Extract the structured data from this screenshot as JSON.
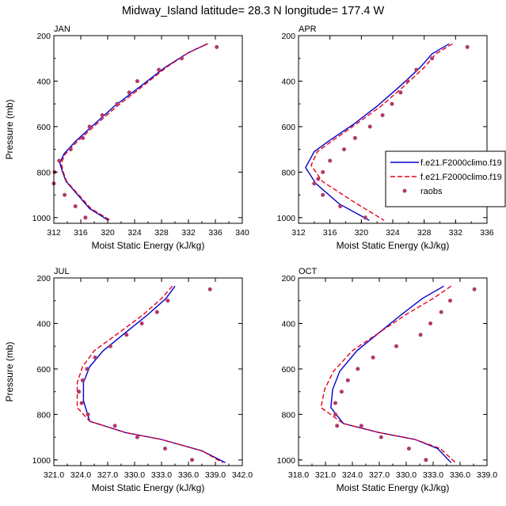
{
  "suptitle": "Midway_Island  latitude= 28.3 N longitude= 177.4 W",
  "colors": {
    "model1": "#0000cc",
    "model2": "#e8001a",
    "raobs": "#b03a6a"
  },
  "legend": {
    "entries": [
      {
        "label": "f.e21.F2000climo.f19",
        "style": "solid"
      },
      {
        "label": "f.e21.F2000climo.f19",
        "style": "dashed"
      },
      {
        "label": "raobs",
        "style": "marker"
      }
    ]
  },
  "chart_data": [
    {
      "type": "line",
      "title": "JAN",
      "xlabel": "Moist Static Energy (kJ/kg)",
      "ylabel": "Pressure (mb)",
      "xlim": [
        312,
        340
      ],
      "ylim": [
        200,
        1025
      ],
      "xticks": [
        312,
        316,
        320,
        324,
        328,
        332,
        336,
        340
      ],
      "xticklabels": [
        "312",
        "316",
        "320",
        "324",
        "328",
        "332",
        "336",
        "340"
      ],
      "yticks": [
        200,
        400,
        600,
        800,
        1000
      ],
      "yticklabels": [
        "200",
        "400",
        "600",
        "800",
        "1000"
      ],
      "series": [
        {
          "name": "f.e21.F2000climo.f19",
          "style": "solid",
          "x": [
            334.8,
            332.0,
            328.5,
            325.0,
            321.0,
            318.0,
            315.2,
            313.5,
            312.9,
            313.3,
            313.8,
            317.3,
            320.1
          ],
          "y": [
            236,
            275,
            340,
            420,
            510,
            590,
            665,
            720,
            760,
            800,
            840,
            960,
            1012
          ]
        },
        {
          "name": "f.e21.F2000climo.f19",
          "style": "dashed",
          "x": [
            334.9,
            332.0,
            328.7,
            325.3,
            321.4,
            318.3,
            315.5,
            313.7,
            313.1,
            313.4,
            313.9,
            317.5,
            320.4
          ],
          "y": [
            236,
            275,
            340,
            420,
            510,
            590,
            665,
            720,
            760,
            800,
            840,
            960,
            1012
          ]
        },
        {
          "name": "raobs",
          "style": "marker",
          "x": [
            336.2,
            331.0,
            327.6,
            324.4,
            323.2,
            321.4,
            319.2,
            317.3,
            316.3,
            314.5,
            312.8,
            312.1,
            312.0,
            313.6,
            315.2,
            316.7
          ],
          "y": [
            250,
            300,
            350,
            400,
            450,
            500,
            550,
            600,
            650,
            700,
            750,
            800,
            850,
            900,
            950,
            1000
          ]
        }
      ]
    },
    {
      "type": "line",
      "title": "APR",
      "xlabel": "Moist Static Energy (kJ/kg)",
      "ylabel": "",
      "xlim": [
        312,
        336
      ],
      "ylim": [
        200,
        1025
      ],
      "xticks": [
        312,
        316,
        320,
        324,
        328,
        332,
        336
      ],
      "xticklabels": [
        "312",
        "316",
        "320",
        "324",
        "328",
        "332",
        "336"
      ],
      "yticks": [
        200,
        400,
        600,
        800,
        1000
      ],
      "yticklabels": [
        "200",
        "400",
        "600",
        "800",
        "1000"
      ],
      "series": [
        {
          "name": "f.e21.F2000climo.f19",
          "style": "solid",
          "x": [
            331.2,
            329.0,
            327.5,
            325.0,
            322.0,
            319.0,
            316.0,
            314.0,
            312.9,
            314.2,
            317.2,
            321.0
          ],
          "y": [
            236,
            280,
            340,
            420,
            510,
            590,
            660,
            710,
            780,
            850,
            940,
            1012
          ]
        },
        {
          "name": "f.e21.F2000climo.f19",
          "style": "dashed",
          "x": [
            331.6,
            329.5,
            328.0,
            325.5,
            322.5,
            319.3,
            316.4,
            314.4,
            313.6,
            315.0,
            319.0,
            322.9
          ],
          "y": [
            236,
            280,
            340,
            420,
            510,
            590,
            660,
            710,
            770,
            840,
            930,
            1012
          ]
        },
        {
          "name": "raobs",
          "style": "marker",
          "x": [
            333.5,
            329.0,
            327.0,
            325.9,
            325.0,
            323.9,
            322.7,
            321.1,
            319.2,
            317.8,
            316.0,
            315.1,
            314.5,
            314.0,
            315.1,
            317.3,
            320.5
          ],
          "y": [
            250,
            300,
            350,
            400,
            450,
            500,
            550,
            600,
            650,
            700,
            750,
            800,
            830,
            850,
            900,
            950,
            1000
          ]
        }
      ]
    },
    {
      "type": "line",
      "title": "JUL",
      "xlabel": "Moist Static Energy (kJ/kg)",
      "ylabel": "Pressure (mb)",
      "xlim": [
        321,
        342
      ],
      "ylim": [
        200,
        1025
      ],
      "xticks": [
        321,
        324,
        327,
        330,
        333,
        336,
        339,
        342
      ],
      "xticklabels": [
        "321.0",
        "324.0",
        "327.0",
        "330.0",
        "333.0",
        "336.0",
        "339.0",
        "342.0"
      ],
      "yticks": [
        200,
        400,
        600,
        800,
        1000
      ],
      "yticklabels": [
        "200",
        "400",
        "600",
        "800",
        "1000"
      ],
      "series": [
        {
          "name": "f.e21.F2000climo.f19",
          "style": "solid",
          "x": [
            334.5,
            333.5,
            331.5,
            329.0,
            326.5,
            325.0,
            324.3,
            324.3,
            325.0,
            329.0,
            333.0,
            337.5,
            340.1
          ],
          "y": [
            236,
            290,
            360,
            440,
            520,
            590,
            660,
            740,
            830,
            880,
            910,
            960,
            1012
          ]
        },
        {
          "name": "f.e21.F2000climo.f19",
          "style": "dashed",
          "x": [
            334.2,
            333.0,
            331.0,
            328.3,
            325.5,
            324.2,
            323.6,
            323.6,
            325.0,
            329.0,
            333.0,
            337.5,
            339.8
          ],
          "y": [
            236,
            290,
            360,
            440,
            520,
            590,
            660,
            770,
            830,
            880,
            910,
            960,
            1012
          ]
        },
        {
          "name": "raobs",
          "style": "marker",
          "x": [
            338.4,
            333.7,
            332.5,
            330.8,
            329.1,
            327.3,
            325.6,
            324.7,
            324.2,
            323.8,
            324.1,
            324.8,
            327.8,
            330.3,
            333.4,
            336.4
          ],
          "y": [
            250,
            300,
            350,
            400,
            450,
            500,
            550,
            600,
            650,
            700,
            750,
            800,
            850,
            900,
            950,
            1000
          ]
        }
      ]
    },
    {
      "type": "line",
      "title": "OCT",
      "xlabel": "Moist Static Energy (kJ/kg)",
      "ylabel": "",
      "xlim": [
        318,
        339
      ],
      "ylim": [
        200,
        1025
      ],
      "xticks": [
        318,
        321,
        324,
        327,
        330,
        333,
        336,
        339
      ],
      "xticklabels": [
        "318.0",
        "321.0",
        "324.0",
        "327.0",
        "330.0",
        "333.0",
        "336.0",
        "339.0"
      ],
      "yticks": [
        200,
        400,
        600,
        800,
        1000
      ],
      "yticklabels": [
        "200",
        "400",
        "600",
        "800",
        "1000"
      ],
      "series": [
        {
          "name": "f.e21.F2000climo.f19",
          "style": "solid",
          "x": [
            334.2,
            331.8,
            329.5,
            327.0,
            324.5,
            322.6,
            321.8,
            321.6,
            323.0,
            327.0,
            331.0,
            333.5,
            335.0
          ],
          "y": [
            236,
            290,
            360,
            440,
            520,
            610,
            690,
            770,
            840,
            880,
            910,
            950,
            1012
          ]
        },
        {
          "name": "f.e21.F2000climo.f19",
          "style": "dashed",
          "x": [
            335.0,
            333.0,
            330.0,
            327.0,
            324.0,
            321.9,
            320.9,
            320.5,
            323.0,
            327.0,
            331.0,
            333.8,
            335.5
          ],
          "y": [
            236,
            290,
            360,
            440,
            520,
            610,
            690,
            770,
            840,
            880,
            910,
            950,
            1012
          ]
        },
        {
          "name": "raobs",
          "style": "marker",
          "x": [
            337.6,
            334.9,
            333.9,
            332.7,
            331.6,
            328.9,
            326.3,
            324.6,
            323.5,
            322.8,
            322.1,
            322.1,
            322.3,
            325.0,
            327.2,
            330.3,
            332.2
          ],
          "y": [
            250,
            300,
            350,
            400,
            450,
            500,
            550,
            600,
            650,
            700,
            750,
            800,
            850,
            850,
            900,
            950,
            1000
          ]
        }
      ]
    }
  ]
}
